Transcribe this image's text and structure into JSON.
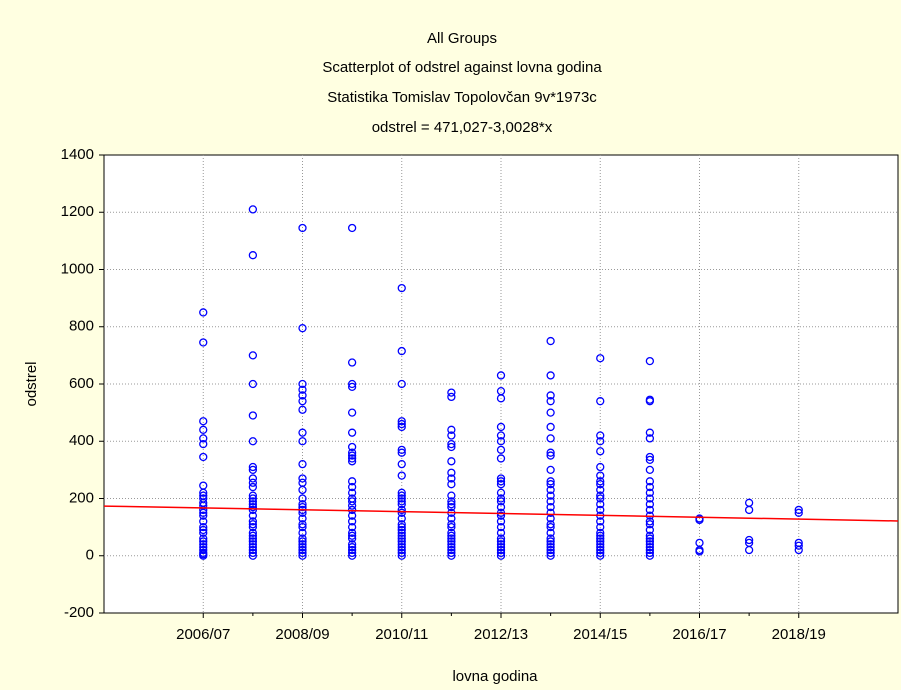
{
  "chart_data": {
    "type": "scatter",
    "title": "All Groups",
    "subtitle": "Scatterplot of odstrel against lovna godina",
    "author": "Statistika Tomislav Topolovčan 9v*1973c",
    "equation": "odstrel = 471,027-3,0028*x",
    "x_label": "lovna godina",
    "y_label": "odstrel",
    "categories": [
      "2006/07",
      null,
      "2008/09",
      null,
      "2010/11",
      null,
      "2012/13",
      null,
      "2014/15",
      null,
      "2016/17",
      null,
      "2018/19"
    ],
    "color": "#0000ff",
    "values": [
      [
        850,
        745,
        470,
        440,
        410,
        390,
        345,
        245,
        220,
        210,
        200,
        185,
        175,
        160,
        150,
        140,
        120,
        100,
        90,
        80,
        60,
        50,
        40,
        30,
        20,
        10,
        5,
        0
      ],
      [
        1210,
        1050,
        700,
        600,
        490,
        400,
        310,
        300,
        270,
        255,
        240,
        210,
        200,
        190,
        180,
        170,
        160,
        140,
        120,
        110,
        100,
        80,
        70,
        60,
        50,
        40,
        30,
        20,
        10,
        0
      ],
      [
        1145,
        795,
        600,
        580,
        560,
        540,
        510,
        430,
        400,
        320,
        270,
        255,
        230,
        200,
        180,
        170,
        160,
        150,
        130,
        110,
        100,
        80,
        60,
        50,
        40,
        30,
        20,
        10,
        0
      ],
      [
        1145,
        675,
        600,
        590,
        500,
        430,
        380,
        360,
        350,
        340,
        330,
        260,
        240,
        220,
        200,
        190,
        175,
        160,
        140,
        120,
        100,
        80,
        70,
        60,
        40,
        30,
        20,
        10,
        0
      ],
      [
        935,
        715,
        600,
        470,
        460,
        450,
        370,
        360,
        320,
        280,
        220,
        210,
        200,
        190,
        180,
        160,
        150,
        130,
        110,
        100,
        90,
        80,
        70,
        60,
        50,
        40,
        30,
        20,
        10,
        0
      ],
      [
        570,
        555,
        440,
        420,
        390,
        380,
        330,
        290,
        270,
        250,
        210,
        190,
        180,
        170,
        150,
        130,
        110,
        100,
        80,
        70,
        60,
        50,
        40,
        30,
        20,
        10,
        0
      ],
      [
        630,
        575,
        550,
        450,
        420,
        400,
        370,
        340,
        270,
        260,
        250,
        220,
        200,
        190,
        170,
        150,
        140,
        120,
        100,
        80,
        60,
        50,
        40,
        30,
        20,
        10,
        0
      ],
      [
        750,
        630,
        560,
        540,
        500,
        450,
        410,
        360,
        350,
        300,
        260,
        250,
        230,
        210,
        190,
        170,
        150,
        130,
        110,
        100,
        80,
        60,
        50,
        40,
        30,
        20,
        10,
        0
      ],
      [
        690,
        540,
        420,
        400,
        365,
        310,
        280,
        260,
        250,
        230,
        210,
        200,
        180,
        160,
        140,
        120,
        100,
        80,
        70,
        60,
        50,
        40,
        30,
        20,
        10,
        0
      ],
      [
        680,
        545,
        540,
        430,
        410,
        345,
        335,
        300,
        260,
        240,
        220,
        200,
        180,
        160,
        140,
        120,
        110,
        90,
        70,
        60,
        50,
        40,
        30,
        20,
        10,
        0
      ],
      [
        130,
        125,
        45,
        20,
        15
      ],
      [
        185,
        160,
        55,
        45,
        20
      ],
      [
        160,
        150,
        45,
        35,
        20
      ]
    ],
    "trend_line": {
      "color": "#ff0000",
      "values": [
        167,
        128
      ]
    },
    "ylim": [
      -200,
      1400
    ],
    "yticks": [
      -200,
      0,
      200,
      400,
      600,
      800,
      1000,
      1200,
      1400
    ],
    "grid": true
  }
}
